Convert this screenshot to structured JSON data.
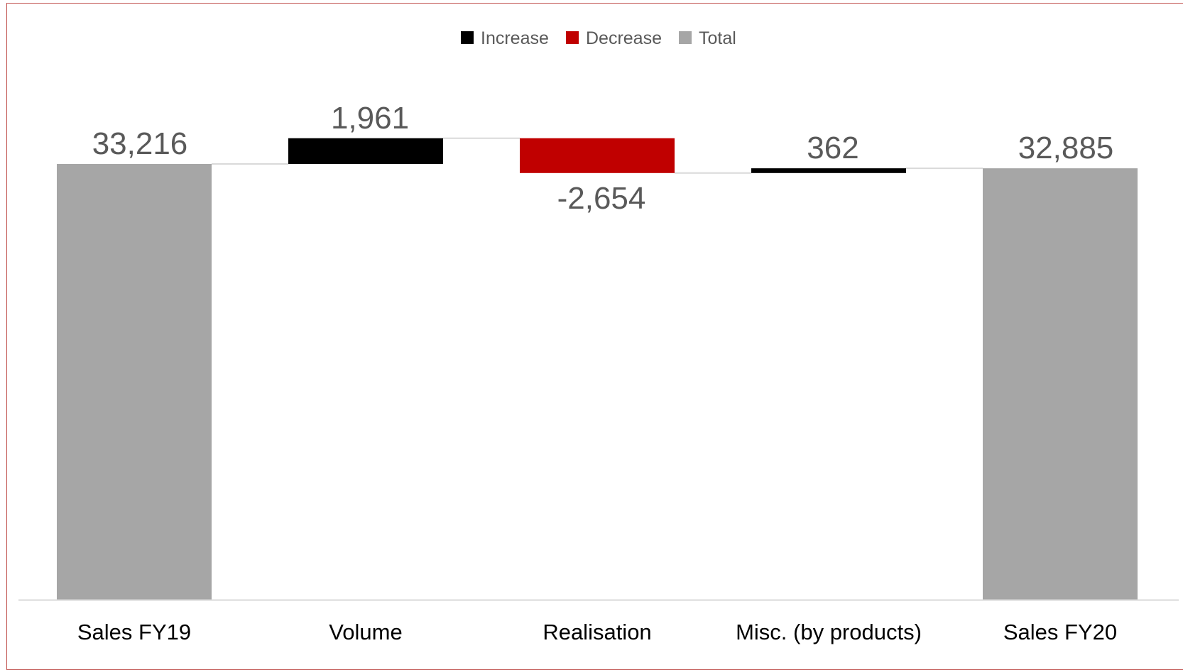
{
  "chart_data": {
    "type": "bar",
    "subtype": "waterfall",
    "title": "",
    "xlabel": "",
    "ylabel": "",
    "categories": [
      "Sales FY19",
      "Volume",
      "Realisation",
      "Misc. (by products)",
      "Sales FY20"
    ],
    "values": [
      33216,
      1961,
      -2654,
      362,
      32885
    ],
    "kinds": [
      "total",
      "increase",
      "decrease",
      "increase",
      "total"
    ],
    "value_labels": [
      "33,216",
      "1,961",
      "-2,654",
      "362",
      "32,885"
    ],
    "legend": {
      "placement": "top-center",
      "items": [
        {
          "name": "Increase",
          "color": "#000000"
        },
        {
          "name": "Decrease",
          "color": "#c00000"
        },
        {
          "name": "Total",
          "color": "#a6a6a6"
        }
      ]
    },
    "ylim": [
      0,
      38500
    ],
    "grid": false,
    "connector_lines": true
  },
  "colors": {
    "increase": "#000000",
    "decrease": "#c00000",
    "total": "#a6a6a6",
    "connector": "#d9d9d9",
    "axis": "#d9d9d9",
    "frame": "#c0504d"
  }
}
